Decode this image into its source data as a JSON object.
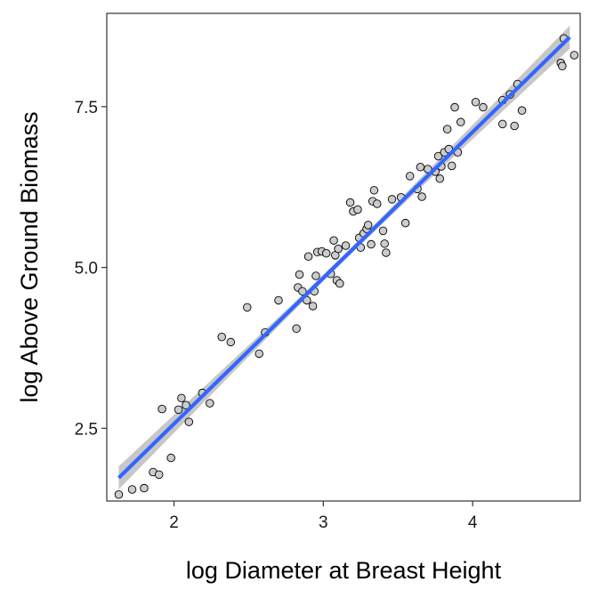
{
  "chart_data": {
    "type": "scatter",
    "title": "",
    "xlabel": "log Diameter at Breast Height",
    "ylabel": "log Above Ground Biomass",
    "xlim": [
      1.55,
      4.72
    ],
    "ylim": [
      1.37,
      8.95
    ],
    "x_ticks": [
      2,
      3,
      4
    ],
    "x_tick_labels": [
      "2",
      "3",
      "4"
    ],
    "y_ticks": [
      2.5,
      5.0,
      7.5
    ],
    "y_tick_labels": [
      "2.5",
      "5.0",
      "7.5"
    ],
    "grid": false,
    "legend": "none",
    "colors": {
      "fit_line": "#3366FF",
      "ci_band": "#BDBDBD",
      "point_fill": "#CCCCCC",
      "point_stroke": "#000000"
    },
    "fit": {
      "method": "linear",
      "x_start": 1.63,
      "y_start": 1.73,
      "x_end": 4.65,
      "y_end": 8.58,
      "ci_halfwidth_ends": 0.18,
      "ci_halfwidth_mid": 0.05
    },
    "series": [
      {
        "points": [
          [
            1.63,
            1.47
          ],
          [
            1.72,
            1.55
          ],
          [
            1.8,
            1.57
          ],
          [
            1.86,
            1.82
          ],
          [
            1.9,
            1.78
          ],
          [
            1.92,
            2.8
          ],
          [
            1.98,
            2.04
          ],
          [
            2.03,
            2.79
          ],
          [
            2.05,
            2.97
          ],
          [
            2.08,
            2.86
          ],
          [
            2.1,
            2.6
          ],
          [
            2.19,
            3.05
          ],
          [
            2.24,
            2.89
          ],
          [
            2.32,
            3.92
          ],
          [
            2.38,
            3.84
          ],
          [
            2.49,
            4.38
          ],
          [
            2.57,
            3.66
          ],
          [
            2.61,
            3.99
          ],
          [
            2.7,
            4.49
          ],
          [
            2.82,
            4.05
          ],
          [
            2.83,
            4.69
          ],
          [
            2.84,
            4.89
          ],
          [
            2.86,
            4.63
          ],
          [
            2.89,
            4.49
          ],
          [
            2.9,
            5.17
          ],
          [
            2.93,
            4.4
          ],
          [
            2.94,
            4.63
          ],
          [
            2.95,
            4.87
          ],
          [
            2.96,
            5.24
          ],
          [
            2.99,
            5.25
          ],
          [
            3.02,
            5.22
          ],
          [
            3.05,
            4.9
          ],
          [
            3.07,
            5.42
          ],
          [
            3.08,
            5.19
          ],
          [
            3.09,
            4.8
          ],
          [
            3.1,
            5.29
          ],
          [
            3.11,
            4.75
          ],
          [
            3.15,
            5.34
          ],
          [
            3.18,
            6.01
          ],
          [
            3.2,
            5.87
          ],
          [
            3.23,
            5.9
          ],
          [
            3.24,
            5.46
          ],
          [
            3.25,
            5.31
          ],
          [
            3.27,
            5.53
          ],
          [
            3.29,
            5.6
          ],
          [
            3.3,
            5.66
          ],
          [
            3.32,
            5.36
          ],
          [
            3.33,
            6.03
          ],
          [
            3.34,
            6.2
          ],
          [
            3.36,
            5.99
          ],
          [
            3.4,
            5.57
          ],
          [
            3.41,
            5.37
          ],
          [
            3.42,
            5.23
          ],
          [
            3.46,
            6.06
          ],
          [
            3.52,
            6.09
          ],
          [
            3.55,
            5.69
          ],
          [
            3.58,
            6.42
          ],
          [
            3.63,
            6.22
          ],
          [
            3.65,
            6.56
          ],
          [
            3.66,
            6.1
          ],
          [
            3.7,
            6.53
          ],
          [
            3.75,
            6.49
          ],
          [
            3.77,
            6.73
          ],
          [
            3.78,
            6.38
          ],
          [
            3.79,
            6.57
          ],
          [
            3.81,
            6.79
          ],
          [
            3.83,
            7.15
          ],
          [
            3.84,
            6.84
          ],
          [
            3.86,
            6.58
          ],
          [
            3.88,
            7.49
          ],
          [
            3.9,
            6.79
          ],
          [
            3.92,
            7.26
          ],
          [
            4.02,
            7.57
          ],
          [
            4.07,
            7.49
          ],
          [
            4.2,
            7.23
          ],
          [
            4.2,
            7.6
          ],
          [
            4.25,
            7.69
          ],
          [
            4.28,
            7.2
          ],
          [
            4.3,
            7.85
          ],
          [
            4.33,
            7.44
          ],
          [
            4.59,
            8.18
          ],
          [
            4.6,
            8.13
          ],
          [
            4.61,
            8.56
          ],
          [
            4.68,
            8.3
          ]
        ]
      }
    ]
  }
}
